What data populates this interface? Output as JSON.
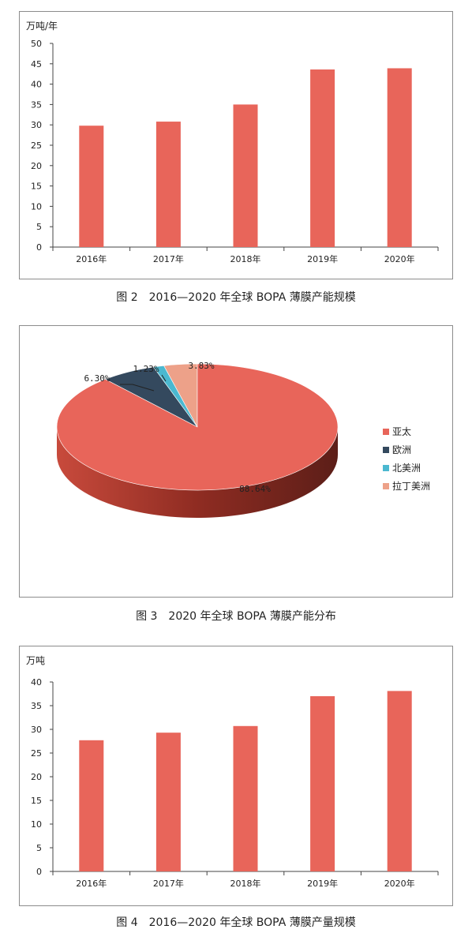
{
  "figures": [
    {
      "caption": "图 2　2016—2020 年全球 BOPA 薄膜产能规模"
    },
    {
      "caption": "图 3　2020 年全球 BOPA 薄膜产能分布"
    },
    {
      "caption": "图 4　2016—2020 年全球 BOPA 薄膜产量规模"
    }
  ],
  "chart_data": [
    {
      "type": "bar",
      "unit_label": "万吨/年",
      "categories": [
        "2016年",
        "2017年",
        "2018年",
        "2019年",
        "2020年"
      ],
      "values": [
        29.8,
        30.8,
        35.0,
        43.6,
        43.9
      ],
      "ylim": [
        0,
        50
      ],
      "yticks": [
        0,
        5,
        10,
        15,
        20,
        25,
        30,
        35,
        40,
        45,
        50
      ],
      "bar_color": "#e8655a",
      "grid": false
    },
    {
      "type": "pie",
      "style": "3d",
      "slices": [
        {
          "name": "亚太",
          "value": 88.64,
          "label": "88.64%",
          "color": "#e8655a"
        },
        {
          "name": "欧洲",
          "value": 6.3,
          "label": "6.30%",
          "color": "#34495e"
        },
        {
          "name": "北美洲",
          "value": 1.23,
          "label": "1.23%",
          "color": "#4bb8d0"
        },
        {
          "name": "拉丁美洲",
          "value": 3.83,
          "label": "3.83%",
          "color": "#eda189"
        }
      ],
      "legend_position": "right"
    },
    {
      "type": "bar",
      "unit_label": "万吨",
      "categories": [
        "2016年",
        "2017年",
        "2018年",
        "2019年",
        "2020年"
      ],
      "values": [
        27.7,
        29.3,
        30.7,
        37.0,
        38.1
      ],
      "ylim": [
        0,
        40
      ],
      "yticks": [
        0,
        5,
        10,
        15,
        20,
        25,
        30,
        35,
        40
      ],
      "bar_color": "#e8655a",
      "grid": false
    }
  ]
}
